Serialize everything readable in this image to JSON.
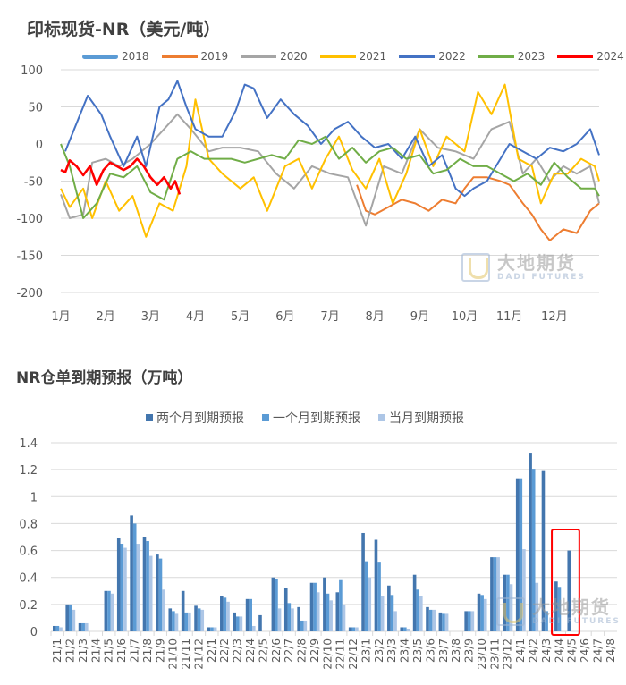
{
  "chart_data": [
    {
      "type": "line",
      "title": "印标现货-NR（美元/吨）",
      "xlabel": "",
      "ylabel": "",
      "ylim": [
        -200,
        100
      ],
      "yticks": [
        100,
        50,
        0,
        -50,
        -100,
        -150,
        -200
      ],
      "x_tick_labels": [
        "1月",
        "2月",
        "3月",
        "4月",
        "5月",
        "6月",
        "7月",
        "8月",
        "9月",
        "10月",
        "11月",
        "12月"
      ],
      "grid": true,
      "legend_position": "top",
      "series": [
        {
          "name": "2018",
          "color": "#5b9bd5",
          "values": []
        },
        {
          "name": "2019",
          "color": "#ed7d31",
          "x": [
            7.6,
            7.8,
            8.0,
            8.3,
            8.6,
            8.9,
            9.2,
            9.5,
            9.8,
            10.0,
            10.2,
            10.5,
            10.8,
            11.0,
            11.3,
            11.5,
            11.7,
            11.9,
            12.2,
            12.5,
            12.8,
            13.0
          ],
          "values": [
            -55,
            -90,
            -95,
            -85,
            -75,
            -80,
            -90,
            -75,
            -80,
            -60,
            -45,
            -45,
            -50,
            -55,
            -80,
            -95,
            -115,
            -130,
            -115,
            -120,
            -90,
            -80
          ]
        },
        {
          "name": "2020",
          "color": "#a5a5a5",
          "x": [
            1.0,
            1.2,
            1.5,
            1.7,
            2.0,
            2.3,
            2.6,
            3.0,
            3.3,
            3.6,
            3.9,
            4.3,
            4.6,
            5.0,
            5.4,
            5.8,
            6.2,
            6.6,
            7.0,
            7.4,
            7.8,
            8.2,
            8.6,
            9.0,
            9.4,
            9.8,
            10.2,
            10.6,
            11.0,
            11.3,
            11.6,
            11.9,
            12.2,
            12.5,
            12.8,
            13.0
          ],
          "values": [
            -68,
            -100,
            -95,
            -25,
            -20,
            -30,
            -20,
            0,
            20,
            40,
            20,
            -10,
            -5,
            -5,
            -10,
            -40,
            -60,
            -30,
            -40,
            -45,
            -110,
            -30,
            -40,
            20,
            -5,
            -10,
            -20,
            20,
            30,
            -40,
            -20,
            -50,
            -30,
            -40,
            -30,
            -80
          ]
        },
        {
          "name": "2021",
          "color": "#ffc000",
          "x": [
            1.0,
            1.2,
            1.5,
            1.7,
            2.0,
            2.3,
            2.6,
            2.9,
            3.2,
            3.5,
            3.8,
            4.0,
            4.3,
            4.6,
            5.0,
            5.3,
            5.6,
            6.0,
            6.3,
            6.6,
            6.9,
            7.2,
            7.5,
            7.8,
            8.1,
            8.4,
            8.7,
            9.0,
            9.3,
            9.6,
            10.0,
            10.3,
            10.6,
            10.9,
            11.2,
            11.5,
            11.7,
            12.0,
            12.3,
            12.6,
            12.9,
            13.0
          ],
          "values": [
            -60,
            -85,
            -60,
            -100,
            -50,
            -90,
            -70,
            -125,
            -80,
            -90,
            -30,
            60,
            -20,
            -40,
            -60,
            -45,
            -90,
            -30,
            -20,
            -60,
            -20,
            10,
            -35,
            -60,
            -20,
            -80,
            -40,
            20,
            -30,
            10,
            -10,
            70,
            40,
            80,
            -20,
            -30,
            -80,
            -40,
            -40,
            -20,
            -30,
            -50
          ]
        },
        {
          "name": "2022",
          "color": "#4472c4",
          "x": [
            1.1,
            1.3,
            1.6,
            1.9,
            2.1,
            2.4,
            2.7,
            2.9,
            3.2,
            3.4,
            3.6,
            3.8,
            4.0,
            4.3,
            4.6,
            4.9,
            5.1,
            5.3,
            5.6,
            5.9,
            6.2,
            6.5,
            6.8,
            7.1,
            7.4,
            7.7,
            8.0,
            8.3,
            8.6,
            8.9,
            9.2,
            9.5,
            9.8,
            10.0,
            10.2,
            10.5,
            10.8,
            11.0,
            11.3,
            11.6,
            11.9,
            12.2,
            12.5,
            12.8,
            13.0
          ],
          "values": [
            -10,
            20,
            65,
            40,
            10,
            -30,
            10,
            -30,
            50,
            60,
            85,
            50,
            20,
            10,
            10,
            45,
            80,
            75,
            35,
            60,
            40,
            25,
            0,
            20,
            30,
            10,
            -5,
            0,
            -20,
            10,
            -30,
            -15,
            -60,
            -70,
            -60,
            -50,
            -20,
            0,
            -10,
            -20,
            -5,
            -10,
            0,
            20,
            -15
          ]
        },
        {
          "name": "2023",
          "color": "#70ad47",
          "x": [
            1.0,
            1.2,
            1.5,
            1.8,
            2.1,
            2.4,
            2.7,
            3.0,
            3.3,
            3.6,
            3.9,
            4.2,
            4.5,
            4.8,
            5.1,
            5.4,
            5.7,
            6.0,
            6.3,
            6.6,
            6.9,
            7.2,
            7.5,
            7.8,
            8.1,
            8.4,
            8.7,
            9.0,
            9.3,
            9.6,
            9.9,
            10.2,
            10.5,
            10.8,
            11.1,
            11.4,
            11.7,
            12.0,
            12.3,
            12.6,
            12.9,
            13.0
          ],
          "values": [
            0,
            -30,
            -100,
            -80,
            -40,
            -45,
            -30,
            -65,
            -75,
            -20,
            -10,
            -20,
            -20,
            -20,
            -25,
            -20,
            -15,
            -20,
            5,
            0,
            10,
            -20,
            -5,
            -25,
            -10,
            -5,
            -20,
            -15,
            -40,
            -35,
            -20,
            -30,
            -30,
            -40,
            -50,
            -40,
            -55,
            -25,
            -45,
            -60,
            -60,
            -70
          ]
        },
        {
          "name": "2024",
          "color": "#ff0000",
          "x": [
            1.0,
            1.1,
            1.2,
            1.35,
            1.5,
            1.65,
            1.8,
            1.95,
            2.1,
            2.25,
            2.4,
            2.55,
            2.7,
            2.85,
            3.0,
            3.15,
            3.3,
            3.45,
            3.55,
            3.65
          ],
          "values": [
            -35,
            -38,
            -22,
            -30,
            -42,
            -30,
            -55,
            -35,
            -25,
            -30,
            -35,
            -30,
            -20,
            -30,
            -45,
            -55,
            -45,
            -60,
            -50,
            -68
          ]
        }
      ]
    },
    {
      "type": "bar",
      "title": "NR仓单到期预报（万吨）",
      "xlabel": "",
      "ylabel": "",
      "ylim": [
        0,
        1.4
      ],
      "yticks": [
        0,
        0.2,
        0.4,
        0.6,
        0.8,
        1,
        1.2,
        1.4
      ],
      "grid": true,
      "legend_position": "top",
      "categories": [
        "21/1",
        "21/2",
        "21/3",
        "21/4",
        "21/5",
        "21/6",
        "21/7",
        "21/8",
        "21/9",
        "21/10",
        "21/11",
        "21/12",
        "22/1",
        "22/2",
        "22/3",
        "22/4",
        "22/5",
        "22/6",
        "22/7",
        "22/8",
        "22/9",
        "22/10",
        "22/11",
        "22/12",
        "23/1",
        "23/2",
        "23/3",
        "23/4",
        "23/5",
        "23/6",
        "23/7",
        "23/8",
        "23/9",
        "23/10",
        "23/11",
        "23/12",
        "24/1",
        "24/2",
        "24/3",
        "24/4",
        "24/5",
        "24/6",
        "24/7",
        "24/8"
      ],
      "series": [
        {
          "name": "两个月到期预报",
          "color": "#4376ae",
          "values": [
            0.04,
            0.2,
            0.06,
            0,
            0.3,
            0.69,
            0.86,
            0.7,
            0.57,
            0.17,
            0.3,
            0.19,
            0.03,
            0.26,
            0.14,
            0.24,
            0.12,
            0.4,
            0.32,
            0.18,
            0.36,
            0.4,
            0.29,
            0.03,
            0.73,
            0.68,
            0.34,
            0.03,
            0.42,
            0.18,
            0.14,
            0,
            0.15,
            0.28,
            0.55,
            0.42,
            1.13,
            1.32,
            1.19,
            0.37,
            0.6,
            0,
            0,
            0
          ]
        },
        {
          "name": "一个月到期预报",
          "color": "#5b9bd5",
          "values": [
            0.04,
            0.2,
            0.06,
            0,
            0.3,
            0.65,
            0.8,
            0.67,
            0.54,
            0.15,
            0.14,
            0.17,
            0.03,
            0.25,
            0.11,
            0.24,
            0,
            0.39,
            0.21,
            0.08,
            0.36,
            0.28,
            0.38,
            0.03,
            0.52,
            0.51,
            0.27,
            0.03,
            0.31,
            0.16,
            0.13,
            0,
            0.15,
            0.27,
            0.55,
            0.42,
            1.13,
            1.2,
            0.15,
            0.33,
            0,
            0,
            0,
            0
          ]
        },
        {
          "name": "当月到期预报",
          "color": "#adc6e6",
          "values": [
            0.03,
            0.16,
            0.06,
            0,
            0.28,
            0.62,
            0.65,
            0.56,
            0.31,
            0.13,
            0.14,
            0.16,
            0.03,
            0.22,
            0.11,
            0.04,
            0,
            0.17,
            0.17,
            0.08,
            0.29,
            0.23,
            0.2,
            0.03,
            0.4,
            0.26,
            0.15,
            0.02,
            0.26,
            0.16,
            0.13,
            0,
            0.15,
            0.24,
            0.55,
            0.35,
            0.61,
            0.36,
            0,
            0,
            0,
            0,
            0,
            0
          ]
        }
      ],
      "annotations": [
        {
          "type": "highlight-box",
          "color": "#ff0000",
          "categories": [
            "24/4",
            "24/5"
          ]
        }
      ]
    }
  ],
  "line_chart": {
    "title": "印标现货-NR（美元/吨）",
    "legend": [
      {
        "label": "2018",
        "color": "#5b9bd5"
      },
      {
        "label": "2019",
        "color": "#ed7d31"
      },
      {
        "label": "2020",
        "color": "#a5a5a5"
      },
      {
        "label": "2021",
        "color": "#ffc000"
      },
      {
        "label": "2022",
        "color": "#4472c4"
      },
      {
        "label": "2023",
        "color": "#70ad47"
      },
      {
        "label": "2024",
        "color": "#ff0000"
      }
    ],
    "yticks": [
      "100",
      "50",
      "0",
      "-50",
      "-100",
      "-150",
      "-200"
    ],
    "xticks": [
      "1月",
      "2月",
      "3月",
      "4月",
      "5月",
      "6月",
      "7月",
      "8月",
      "9月",
      "10月",
      "11月",
      "12月"
    ]
  },
  "bar_chart": {
    "title": "NR仓单到期预报（万吨）",
    "legend": [
      {
        "label": "两个月到期预报",
        "color": "#4376ae"
      },
      {
        "label": "一个月到期预报",
        "color": "#5b9bd5"
      },
      {
        "label": "当月到期预报",
        "color": "#adc6e6"
      }
    ],
    "yticks": [
      "1.4",
      "1.2",
      "1",
      "0.8",
      "0.6",
      "0.4",
      "0.2",
      "0"
    ]
  },
  "watermark": {
    "cn": "大地期货",
    "en": "DADI FUTURES"
  }
}
